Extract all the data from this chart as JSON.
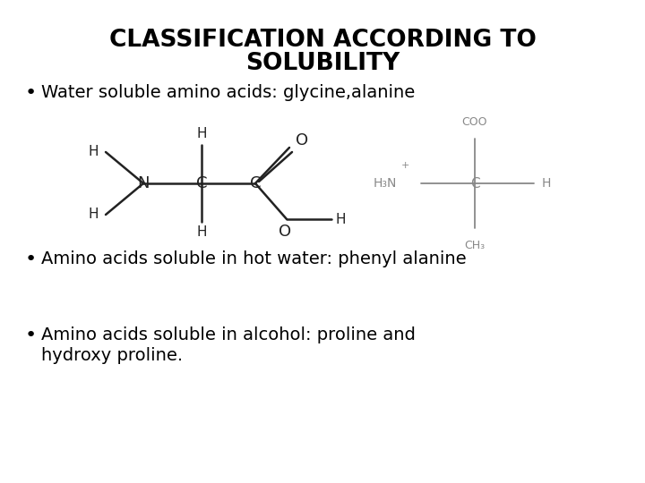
{
  "title_line1": "CLASSIFICATION ACCORDING TO",
  "title_line2": "SOLUBILITY",
  "bullet1": "Water soluble amino acids: glycine,alanine",
  "bullet2": "Amino acids soluble in hot water: phenyl alanine",
  "bullet3_line1": "Amino acids soluble in alcohol: proline and",
  "bullet3_line2": "hydroxy proline.",
  "bg_color": "#ffffff",
  "title_color": "#000000",
  "text_color": "#000000",
  "title_fontsize": 19,
  "bullet_fontsize": 14,
  "struct_color": "#222222",
  "struct_light_color": "#888888",
  "fig_width": 7.2,
  "fig_height": 5.4,
  "dpi": 100
}
